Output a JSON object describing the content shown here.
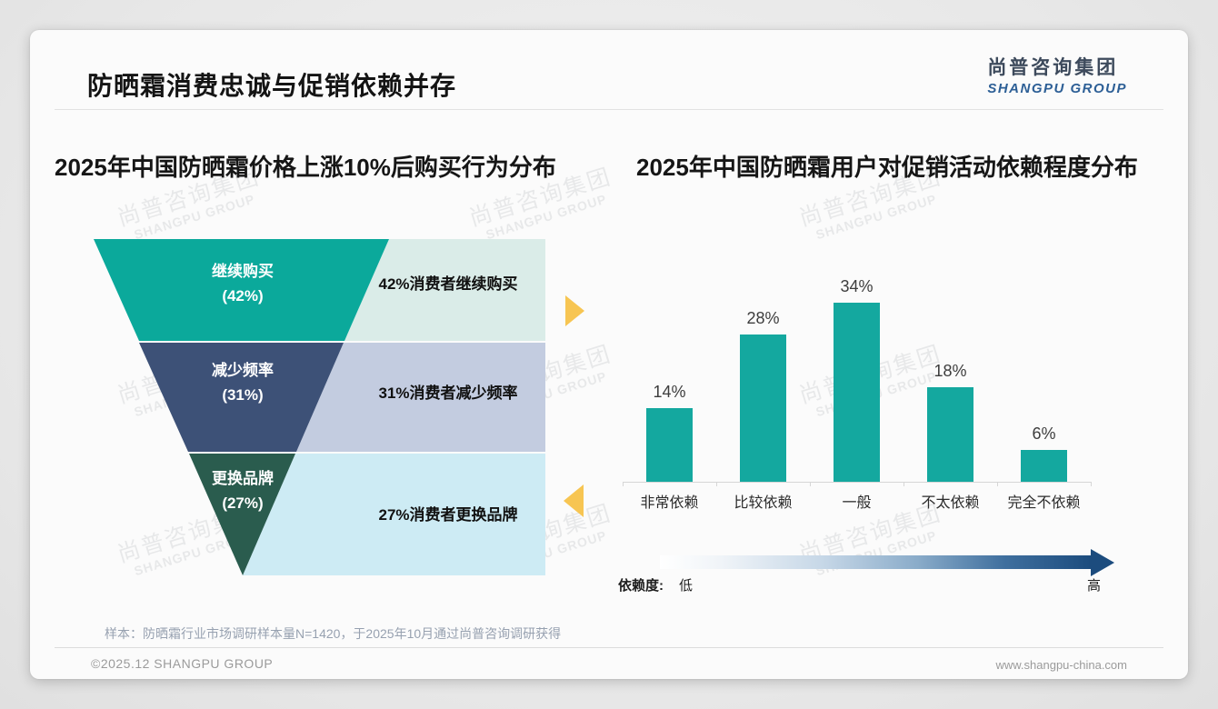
{
  "page": {
    "title": "防晒霜消费忠诚与促销依赖并存",
    "logo": {
      "cn": "尚普咨询集团",
      "en": "SHANGPU GROUP"
    },
    "watermark": {
      "line1": "尚普咨询集团",
      "line2": "SHANGPU GROUP"
    },
    "note": "样本：防晒霜行业市场调研样本量N=1420，于2025年10月通过尚普咨询调研获得",
    "footer": {
      "left": "©2025.12 SHANGPU GROUP",
      "right": "www.shangpu-china.com"
    }
  },
  "chart_data": [
    {
      "type": "funnel",
      "title": "2025年中国防晒霜价格上涨10%后购买行为分布",
      "categories": [
        "继续购买",
        "减少频率",
        "更换品牌"
      ],
      "pct_labels": [
        "(42%)",
        "(31%)",
        "(27%)"
      ],
      "values": [
        42,
        31,
        27
      ],
      "labels": [
        "42%消费者继续购买",
        "31%消费者减少频率",
        "27%消费者更换品牌"
      ],
      "segment_colors": [
        "#0ba99b",
        "#3d5177",
        "#2a5c4e"
      ],
      "panel_colors": [
        "#daece8",
        "#c3cce0",
        "#cdebf4"
      ],
      "pointer_color": "#f7c552"
    },
    {
      "type": "bar",
      "title": "2025年中国防晒霜用户对促销活动依赖程度分布",
      "categories": [
        "非常依赖",
        "比较依赖",
        "一般",
        "不太依赖",
        "完全不依赖"
      ],
      "values": [
        14,
        28,
        34,
        18,
        6
      ],
      "value_labels": [
        "14%",
        "28%",
        "34%",
        "18%",
        "6%"
      ],
      "bar_color": "#14a89f",
      "ylim": [
        0,
        38
      ],
      "grid": false,
      "axis": {
        "legend_label": "依赖度:",
        "low": "低",
        "high": "高"
      }
    }
  ]
}
